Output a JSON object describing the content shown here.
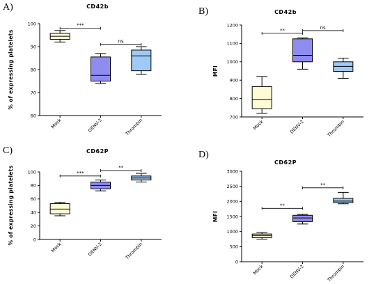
{
  "colors": {
    "mock": "#fffbd6",
    "denv": "#8e8cf0",
    "thrombin": "#9fcaf5"
  },
  "chart_data": [
    {
      "panel": "A)",
      "type": "box",
      "title": "CD42b",
      "ylabel": "% of expressing platelets",
      "categories": [
        "Mock",
        "DENV-2",
        "Thrombin"
      ],
      "ylim": [
        60,
        100
      ],
      "yticks": [
        60,
        70,
        80,
        90,
        100
      ],
      "boxes": [
        {
          "min": 92,
          "q1": 93.2,
          "median": 94.5,
          "q3": 95.8,
          "max": 97
        },
        {
          "min": 74,
          "q1": 75,
          "median": 77.5,
          "q3": 85.5,
          "max": 87
        },
        {
          "min": 78,
          "q1": 79.5,
          "median": 86,
          "q3": 88.5,
          "max": 90
        }
      ],
      "comparisons": [
        {
          "from": 0,
          "to": 1,
          "label": "***",
          "y": 98
        },
        {
          "from": 1,
          "to": 2,
          "label": "ns",
          "y": 91
        }
      ]
    },
    {
      "panel": "B)",
      "type": "box",
      "title": "CD42b",
      "ylabel": "MFI",
      "categories": [
        "Mock",
        "DENV-2",
        "Thrombin"
      ],
      "ylim": [
        700,
        1200
      ],
      "yticks": [
        700,
        800,
        900,
        1000,
        1100,
        1200
      ],
      "boxes": [
        {
          "min": 720,
          "q1": 745,
          "median": 795,
          "q3": 865,
          "max": 920
        },
        {
          "min": 960,
          "q1": 1000,
          "median": 1035,
          "q3": 1125,
          "max": 1130
        },
        {
          "min": 910,
          "q1": 948,
          "median": 975,
          "q3": 1000,
          "max": 1020
        }
      ],
      "comparisons": [
        {
          "from": 0,
          "to": 1,
          "label": "**",
          "y": 1155
        },
        {
          "from": 1,
          "to": 2,
          "label": "ns",
          "y": 1170
        }
      ]
    },
    {
      "panel": "C)",
      "type": "box",
      "title": "CD62P",
      "ylabel": "% of expressing platelets",
      "categories": [
        "Mock",
        "DENV-2",
        "Thrombin"
      ],
      "ylim": [
        0,
        100
      ],
      "yticks": [
        0,
        20,
        40,
        60,
        80,
        100
      ],
      "boxes": [
        {
          "min": 35,
          "q1": 38,
          "median": 45,
          "q3": 53,
          "max": 55
        },
        {
          "min": 72,
          "q1": 75,
          "median": 80,
          "q3": 85,
          "max": 88
        },
        {
          "min": 85,
          "q1": 88,
          "median": 91,
          "q3": 94,
          "max": 98
        }
      ],
      "comparisons": [
        {
          "from": 0,
          "to": 1,
          "label": "***",
          "y": 94
        },
        {
          "from": 1,
          "to": 2,
          "label": "**",
          "y": 102
        }
      ]
    },
    {
      "panel": "D)",
      "type": "box",
      "title": "CD62P",
      "ylabel": "MFI",
      "categories": [
        "Mock",
        "DENV-2",
        "Thrombin"
      ],
      "ylim": [
        0,
        3000
      ],
      "yticks": [
        0,
        500,
        1000,
        1500,
        2000,
        2500,
        3000
      ],
      "boxes": [
        {
          "min": 750,
          "q1": 800,
          "median": 870,
          "q3": 920,
          "max": 970
        },
        {
          "min": 1250,
          "q1": 1330,
          "median": 1450,
          "q3": 1540,
          "max": 1570
        },
        {
          "min": 1920,
          "q1": 1960,
          "median": 2010,
          "q3": 2100,
          "max": 2300
        }
      ],
      "comparisons": [
        {
          "from": 0,
          "to": 1,
          "label": "**",
          "y": 1770
        },
        {
          "from": 1,
          "to": 2,
          "label": "**",
          "y": 2450
        }
      ]
    }
  ]
}
